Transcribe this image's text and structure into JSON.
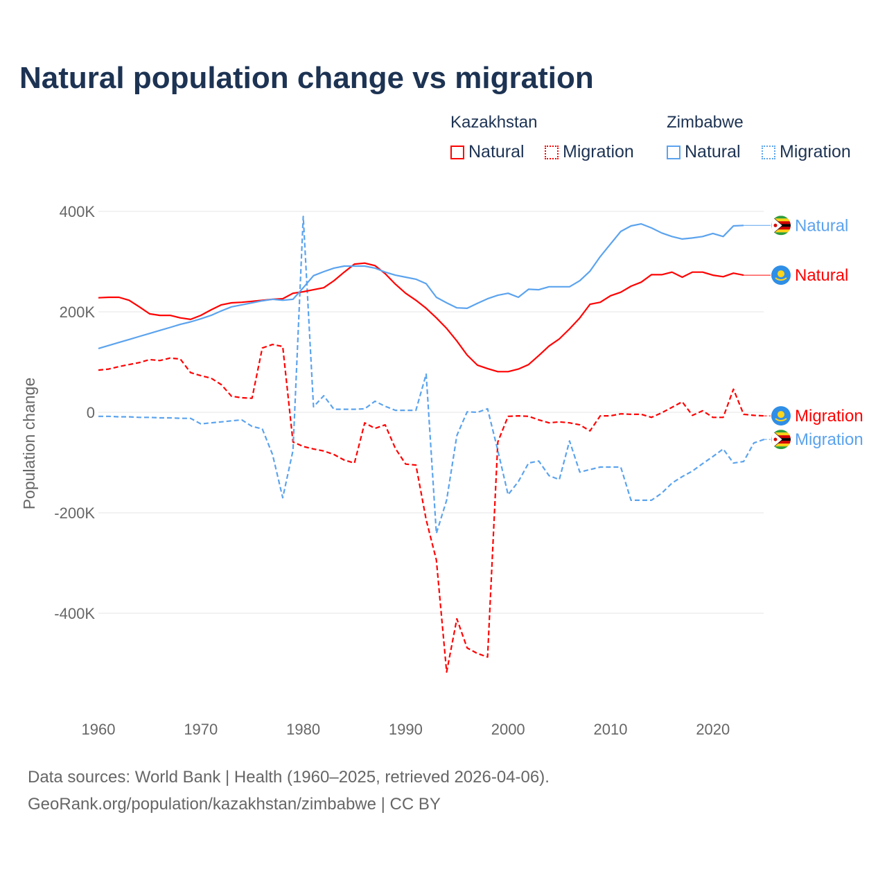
{
  "chart_data": {
    "type": "line",
    "title": "Natural population change vs migration",
    "xlabel": "",
    "ylabel": "Population change",
    "xlim": [
      1960,
      2025
    ],
    "ylim": [
      -520000,
      400000
    ],
    "y_ticks": [
      400000,
      200000,
      0,
      -200000,
      -400000
    ],
    "y_tick_labels": [
      "400K",
      "200K",
      "0",
      "-200K",
      "-400K"
    ],
    "x_ticks": [
      1960,
      1970,
      1980,
      1990,
      2000,
      2010,
      2020
    ],
    "x_tick_labels": [
      "1960",
      "1970",
      "1980",
      "1990",
      "2000",
      "2010",
      "2020"
    ],
    "grid": true,
    "legend_placement": "top-right",
    "legend_groups": [
      {
        "country": "Kazakhstan",
        "items": [
          "Natural",
          "Migration"
        ]
      },
      {
        "country": "Zimbabwe",
        "items": [
          "Natural",
          "Migration"
        ]
      }
    ],
    "series": [
      {
        "name": "Kazakhstan Natural",
        "country": "Kazakhstan",
        "kind": "Natural",
        "label": "Natural",
        "color": "#ff0000",
        "dash": false,
        "start_year": 1960,
        "values_k": [
          228,
          229,
          229,
          223,
          210,
          196,
          193,
          193,
          188,
          185,
          193,
          204,
          214,
          218,
          219,
          221,
          223,
          225,
          226,
          237,
          240,
          244,
          248,
          262,
          279,
          295,
          297,
          292,
          276,
          255,
          237,
          223,
          207,
          188,
          167,
          142,
          114,
          94,
          87,
          81,
          81,
          86,
          95,
          113,
          132,
          146,
          166,
          188,
          215,
          219,
          232,
          239,
          251,
          259,
          274,
          274,
          279,
          269,
          279,
          279,
          273,
          270,
          277,
          273
        ]
      },
      {
        "name": "Kazakhstan Migration",
        "country": "Kazakhstan",
        "kind": "Migration",
        "label": "Migration",
        "color": "#ff0000",
        "dash": true,
        "start_year": 1960,
        "values_k": [
          84,
          86,
          91,
          95,
          99,
          105,
          103,
          108,
          106,
          79,
          73,
          68,
          55,
          32,
          29,
          28,
          128,
          135,
          131,
          -59,
          -68,
          -73,
          -77,
          -84,
          -95,
          -101,
          -21,
          -32,
          -25,
          -72,
          -103,
          -105,
          -214,
          -294,
          -517,
          -411,
          -469,
          -480,
          -487,
          -59,
          -8,
          -7,
          -8,
          -15,
          -21,
          -19,
          -21,
          -25,
          -37,
          -7,
          -7,
          -3,
          -4,
          -4,
          -10,
          -1,
          10,
          21,
          -6,
          3,
          -10,
          -10,
          46,
          -4,
          -6,
          -7
        ]
      },
      {
        "name": "Zimbabwe Natural",
        "country": "Zimbabwe",
        "kind": "Natural",
        "label": "Natural",
        "color": "#5ba3ee",
        "dash": false,
        "start_year": 1960,
        "values_k": [
          127,
          133,
          139,
          145,
          151,
          157,
          163,
          169,
          175,
          180,
          186,
          193,
          202,
          210,
          214,
          218,
          222,
          225,
          223,
          225,
          248,
          272,
          280,
          287,
          291,
          291,
          291,
          287,
          279,
          273,
          269,
          265,
          256,
          229,
          218,
          208,
          207,
          217,
          226,
          233,
          237,
          229,
          245,
          244,
          250,
          250,
          250,
          262,
          281,
          310,
          335,
          360,
          371,
          375,
          367,
          357,
          350,
          345,
          347,
          350,
          356,
          350,
          371,
          372
        ]
      },
      {
        "name": "Zimbabwe Migration",
        "country": "Zimbabwe",
        "kind": "Migration",
        "label": "Migration",
        "color": "#5ba3ee",
        "dash": true,
        "start_year": 1960,
        "values_k": [
          -8,
          -8,
          -9,
          -9,
          -10,
          -10,
          -11,
          -11,
          -12,
          -12,
          -23,
          -21,
          -19,
          -17,
          -15,
          -28,
          -33,
          -84,
          -170,
          -76,
          390,
          11,
          33,
          6,
          6,
          6,
          7,
          22,
          12,
          4,
          4,
          4,
          76,
          -241,
          -175,
          -46,
          1,
          0,
          7,
          -76,
          -164,
          -138,
          -101,
          -97,
          -126,
          -134,
          -57,
          -119,
          -114,
          -109,
          -109,
          -109,
          -175,
          -175,
          -175,
          -161,
          -141,
          -128,
          -117,
          -102,
          -88,
          -73,
          -101,
          -98,
          -61,
          -54
        ]
      }
    ]
  },
  "legend": {
    "kazakhstan": "Kazakhstan",
    "zimbabwe": "Zimbabwe",
    "natural": "Natural",
    "migration": "Migration"
  },
  "footer": {
    "source": "Data sources: World Bank | Health (1960–2025, retrieved 2026-04-06).",
    "link": "GeoRank.org/population/kazakhstan/zimbabwe | CC BY"
  }
}
